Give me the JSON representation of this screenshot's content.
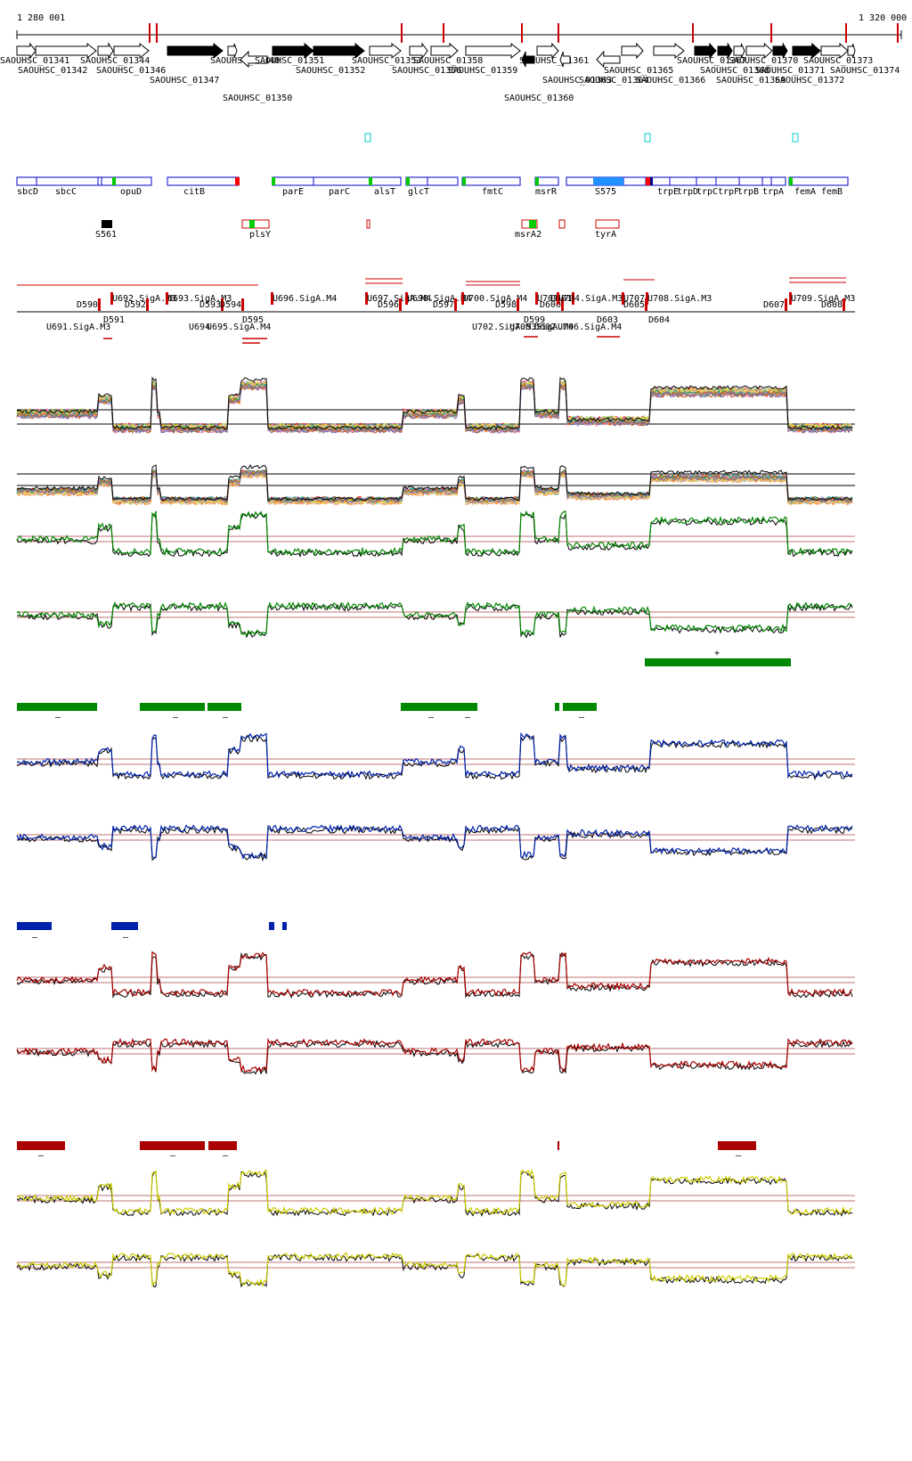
{
  "ruler": {
    "start_label": "1 280 001",
    "end_label": "1 320 000"
  },
  "genes_top": [
    {
      "label": "SAOUHSC_01341",
      "fill": false,
      "dir": "+",
      "row": 0
    },
    {
      "label": "SAOUHSC_01342",
      "fill": false,
      "dir": "+",
      "row": 1
    },
    {
      "label": "SAOUHSC_01344",
      "fill": false,
      "dir": "+",
      "row": 0
    },
    {
      "label": "SAOUHSC_01346",
      "fill": false,
      "dir": "+",
      "row": 1
    },
    {
      "label": "SAOUHSC_01347",
      "fill": true,
      "dir": "+",
      "row": 2
    },
    {
      "label": "SAOUHSC_01348",
      "fill": false,
      "dir": "+",
      "row": 0
    },
    {
      "label": "SAOUHSC_01350",
      "fill": false,
      "dir": "-",
      "row": 3
    },
    {
      "label": "SAOUHSC_01351",
      "fill": true,
      "dir": "+",
      "row": 0
    },
    {
      "label": "SAOUHSC_01352",
      "fill": true,
      "dir": "+",
      "row": 1
    },
    {
      "label": "SAOUHSC_01353",
      "fill": false,
      "dir": "+",
      "row": 0
    },
    {
      "label": "SAOUHSC_01356",
      "fill": false,
      "dir": "+",
      "row": 1
    },
    {
      "label": "SAOUHSC_01358",
      "fill": false,
      "dir": "+",
      "row": 0
    },
    {
      "label": "SAOUHSC_01359",
      "fill": false,
      "dir": "+",
      "row": 1
    },
    {
      "label": "SAOUHSC_01360",
      "fill": true,
      "dir": "-",
      "row": 3
    },
    {
      "label": "SAOUHSC_01361",
      "fill": false,
      "dir": "+",
      "row": 0
    },
    {
      "label": "SAOUHSC_01363",
      "fill": false,
      "dir": "-",
      "row": 2
    },
    {
      "label": "SAOUHSC_01364",
      "fill": false,
      "dir": "-",
      "row": 2
    },
    {
      "label": "SAOUHSC_01365",
      "fill": false,
      "dir": "+",
      "row": 1
    },
    {
      "label": "SAOUHSC_01366",
      "fill": false,
      "dir": "+",
      "row": 2
    },
    {
      "label": "SAOUHSC_01367",
      "fill": true,
      "dir": "+",
      "row": 0
    },
    {
      "label": "SAOUHSC_01368",
      "fill": true,
      "dir": "+",
      "row": 1
    },
    {
      "label": "SAOUHSC_01369",
      "fill": false,
      "dir": "+",
      "row": 2
    },
    {
      "label": "SAOUHSC_01370",
      "fill": false,
      "dir": "+",
      "row": 0
    },
    {
      "label": "SAOUHSC_01371",
      "fill": true,
      "dir": "+",
      "row": 1
    },
    {
      "label": "SAOUHSC_01372",
      "fill": true,
      "dir": "+",
      "row": 2
    },
    {
      "label": "SAOUHSC_01373",
      "fill": false,
      "dir": "+",
      "row": 0
    },
    {
      "label": "SAOUHSC_01374",
      "fill": false,
      "dir": "+",
      "row": 1
    }
  ],
  "operon_names": [
    "sbcD",
    "sbcC",
    "opuD",
    "citB",
    "parE",
    "parC",
    "alsT",
    "glcT",
    "fmtC",
    "msrR",
    "S575",
    "trpE",
    "trpD",
    "trpC",
    "trpF",
    "trpB",
    "trpA",
    "femA",
    "femB"
  ],
  "lower_features": [
    "S561",
    "plsY",
    "msrA2",
    "tyrA"
  ],
  "promoter_labels_upper": [
    "D590",
    "U692.SigA.M3",
    "D592",
    "U693.SigA.M3",
    "D593",
    "D594",
    "U696.SigA.M4",
    "U697.SigA.M4",
    "D596",
    "U698.SigA.M4",
    "D597",
    "U700.SigA.M4",
    "D598",
    "U701",
    "D600",
    "D601",
    "U704.SigA.M3",
    "U707",
    "D605",
    "U708.SigA.M3",
    "D607",
    "U709.SigA.M3",
    "D608"
  ],
  "promoter_labels_lower": [
    "D591",
    "U691.SigA.M3",
    "U694",
    "U695.SigA.M4",
    "D595",
    "U702.SigA.M3",
    "D599",
    "U705.SigA.M4",
    "D602",
    "U706.SigA.M4",
    "D603",
    "D604"
  ],
  "track_signs": {
    "green": [
      "+",
      "–"
    ],
    "blue": [
      "–"
    ],
    "red": [
      "–"
    ]
  },
  "colors": {
    "gene_fill": "#000000",
    "operon_stroke": "#0000cc",
    "promoter": "#cc0000",
    "green": "#008800",
    "blue": "#0022aa",
    "red": "#aa0000",
    "yellow": "#cccc00",
    "cyan": "#00cccc",
    "light_blue": "#1e90ff"
  }
}
